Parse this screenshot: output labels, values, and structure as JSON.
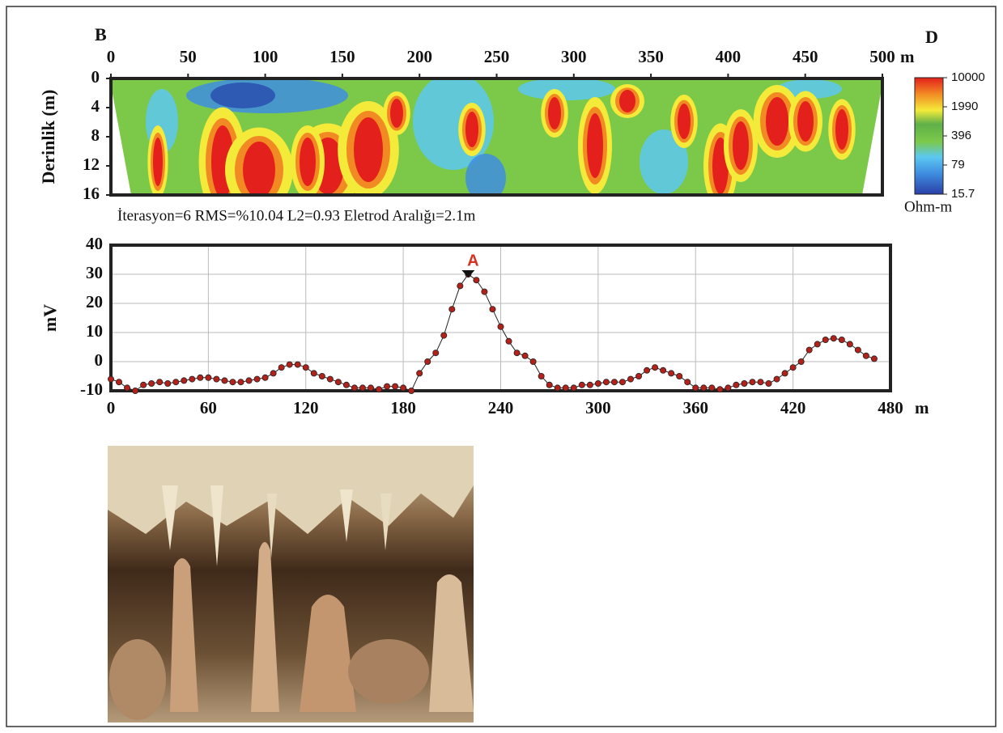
{
  "chart_data": [
    {
      "type": "section",
      "start_label": "B",
      "end_label": "D",
      "x_unit": "m",
      "xlim": [
        0,
        500
      ],
      "xticks": [
        0,
        50,
        100,
        150,
        200,
        250,
        300,
        350,
        400,
        450,
        500
      ],
      "ylabel": "Derinlik (m)",
      "ylim": [
        0,
        16
      ],
      "yticks": [
        0,
        4,
        8,
        12,
        16
      ],
      "y_inverted": true,
      "colorbar_lim": [
        15.7,
        10000
      ],
      "colorbar_ticks": [
        10000,
        1990,
        396,
        79,
        15.7
      ],
      "colorbar_log": true,
      "colorbar_label": "Ohm-m",
      "caption": "İterasyon=6 RMS=%10.04 L2=0.93 Eletrod Aralığı=2.1m"
    },
    {
      "type": "line",
      "ylabel": "mV",
      "x_unit": "m",
      "color": "#b3211b",
      "grid": true,
      "xlim": [
        0,
        480
      ],
      "xticks": [
        0,
        60,
        120,
        180,
        240,
        300,
        360,
        420,
        480
      ],
      "ylim": [
        -10,
        40
      ],
      "yticks": [
        -10,
        0,
        10,
        20,
        30,
        40
      ],
      "annotation": "A",
      "annotation_x": 220,
      "annotation_y": 30,
      "x": [
        0,
        5,
        10,
        15,
        20,
        25,
        30,
        35,
        40,
        45,
        50,
        55,
        60,
        65,
        70,
        75,
        80,
        85,
        90,
        95,
        100,
        105,
        110,
        115,
        120,
        125,
        130,
        135,
        140,
        145,
        150,
        155,
        160,
        165,
        170,
        175,
        180,
        185,
        190,
        195,
        200,
        205,
        210,
        215,
        220,
        225,
        230,
        235,
        240,
        245,
        250,
        255,
        260,
        265,
        270,
        275,
        280,
        285,
        290,
        295,
        300,
        305,
        310,
        315,
        320,
        325,
        330,
        335,
        340,
        345,
        350,
        355,
        360,
        365,
        370,
        375,
        380,
        385,
        390,
        395,
        400,
        405,
        410,
        415,
        420,
        425,
        430,
        435,
        440,
        445,
        450,
        455,
        460,
        465,
        470
      ],
      "values": [
        -6,
        -7,
        -9,
        -10,
        -8,
        -7.5,
        -7,
        -7.5,
        -7,
        -6.5,
        -6,
        -5.5,
        -5.5,
        -6,
        -6.5,
        -7,
        -7,
        -6.5,
        -6,
        -5.5,
        -4,
        -2,
        -1,
        -1,
        -2,
        -4,
        -5,
        -6,
        -7,
        -8,
        -9,
        -9,
        -9,
        -9.5,
        -8.5,
        -8.5,
        -9,
        -10,
        -4,
        0,
        3,
        9,
        18,
        26,
        30,
        28,
        24,
        18,
        12,
        7,
        3,
        2,
        0,
        -5,
        -8,
        -9,
        -9,
        -9,
        -8,
        -8,
        -7.5,
        -7,
        -7,
        -7,
        -6,
        -5,
        -3,
        -2,
        -3,
        -4,
        -5,
        -7,
        -9,
        -9,
        -9,
        -9.5,
        -9,
        -8,
        -7.5,
        -7,
        -7,
        -7.5,
        -6,
        -4,
        -2,
        0,
        4,
        6,
        7.5,
        8,
        7.5,
        6,
        4,
        2,
        1
      ]
    }
  ]
}
